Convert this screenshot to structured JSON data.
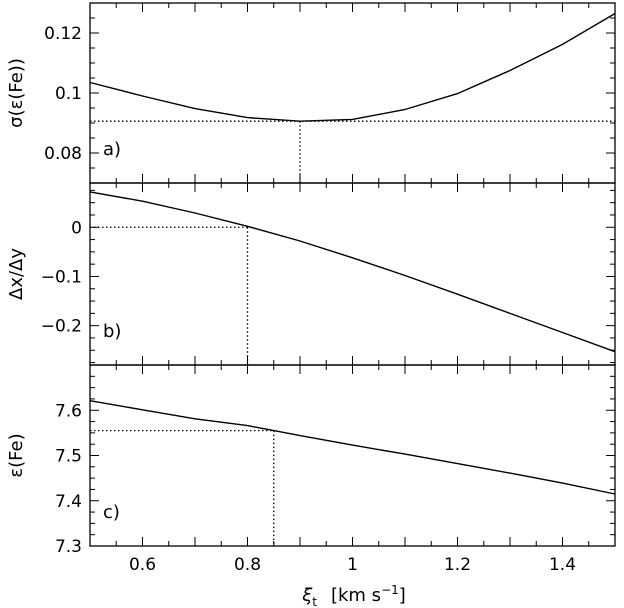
{
  "chart_data": [
    {
      "type": "line",
      "panel_label": "a)",
      "ylabel": "σ(ε(Fe))",
      "xlim": [
        0.5,
        1.5
      ],
      "ylim": [
        0.07,
        0.13
      ],
      "yticks": [
        0.08,
        0.1,
        0.12
      ],
      "ytick_labels": [
        "0.08",
        "0.1",
        "0.12"
      ],
      "x": [
        0.5,
        0.6,
        0.7,
        0.8,
        0.9,
        1.0,
        1.1,
        1.2,
        1.3,
        1.4,
        1.5
      ],
      "y": [
        0.1035,
        0.099,
        0.0948,
        0.0918,
        0.0906,
        0.0912,
        0.0945,
        0.0998,
        0.1075,
        0.1162,
        0.1265
      ],
      "ref_x": 0.9,
      "ref_y": 0.0906
    },
    {
      "type": "line",
      "panel_label": "b)",
      "ylabel": "Δx/Δy",
      "xlim": [
        0.5,
        1.5
      ],
      "ylim": [
        -0.28,
        0.09
      ],
      "yticks": [
        -0.2,
        -0.1,
        0
      ],
      "ytick_labels": [
        "−0.2",
        "−0.1",
        "0"
      ],
      "x": [
        0.5,
        0.6,
        0.7,
        0.8,
        0.9,
        1.0,
        1.1,
        1.2,
        1.3,
        1.4,
        1.5
      ],
      "y": [
        0.072,
        0.053,
        0.029,
        0.002,
        -0.028,
        -0.062,
        -0.098,
        -0.136,
        -0.175,
        -0.214,
        -0.253
      ],
      "ref_x": 0.8,
      "ref_y": 0.0
    },
    {
      "type": "line",
      "panel_label": "c)",
      "ylabel": "ε(Fe)",
      "xlabel_symbol": "ξ",
      "xlabel_subscript": "t",
      "xlabel_units": "[km s",
      "xlabel_units_exp": "−1",
      "xlabel_units_close": "]",
      "xlim": [
        0.5,
        1.5
      ],
      "ylim": [
        7.3,
        7.7
      ],
      "yticks": [
        7.3,
        7.4,
        7.5,
        7.6
      ],
      "ytick_labels": [
        "7.3",
        "7.4",
        "7.5",
        "7.6"
      ],
      "xticks": [
        0.6,
        0.8,
        1.0,
        1.2,
        1.4
      ],
      "xtick_labels": [
        "0.6",
        "0.8",
        "1",
        "1.2",
        "1.4"
      ],
      "x": [
        0.5,
        0.6,
        0.7,
        0.8,
        0.85,
        0.9,
        1.0,
        1.1,
        1.2,
        1.3,
        1.4,
        1.5
      ],
      "y": [
        7.621,
        7.601,
        7.581,
        7.566,
        7.555,
        7.544,
        7.523,
        7.503,
        7.482,
        7.461,
        7.439,
        7.415
      ],
      "ref_x": 0.85,
      "ref_y": 7.555
    }
  ]
}
